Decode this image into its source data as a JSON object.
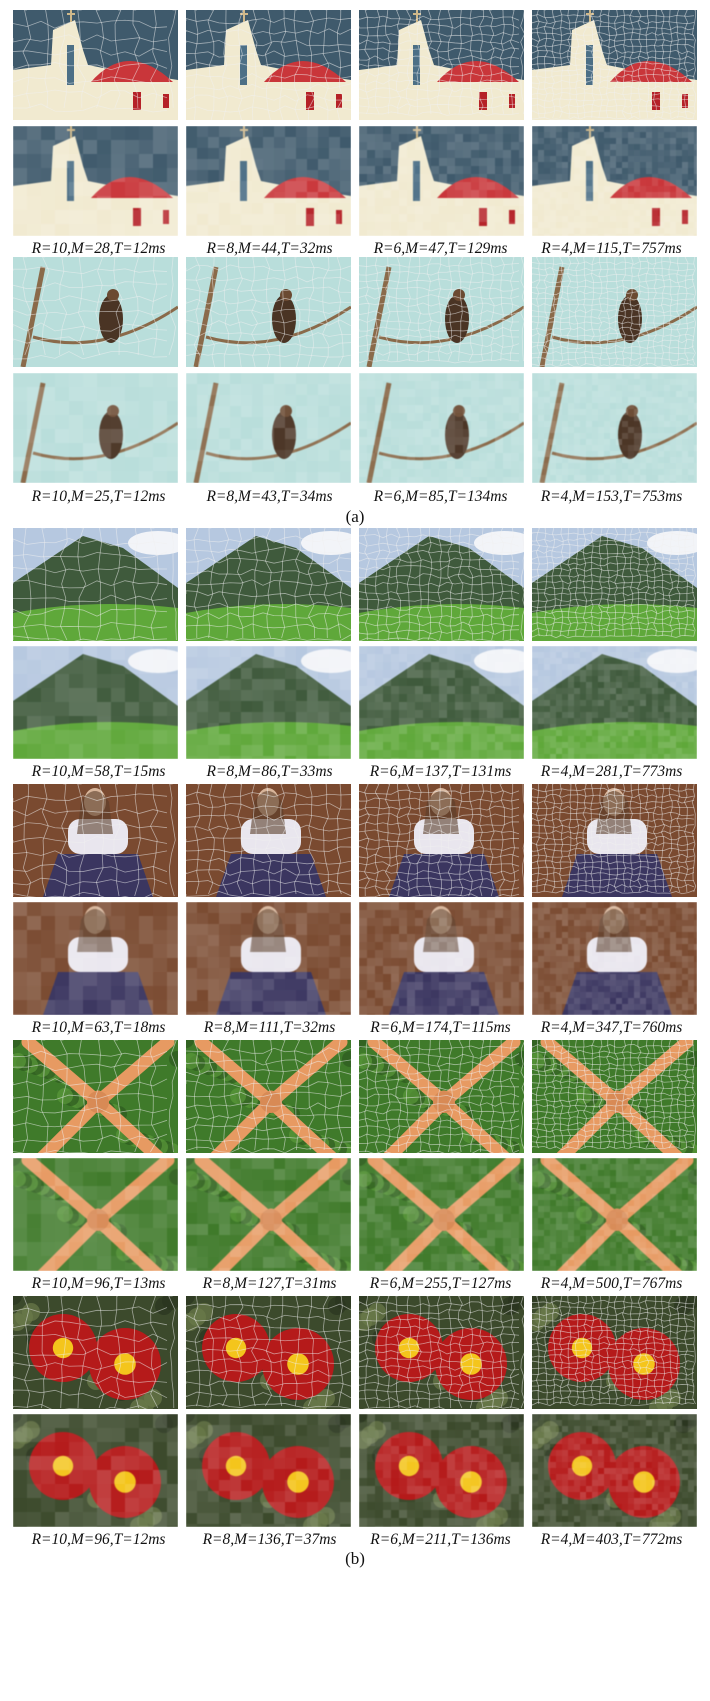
{
  "panels": [
    {
      "label": "(a)",
      "images": [
        {
          "scene": "church",
          "captions": [
            "R=10,M=28,T=12ms",
            "R=8,M=44,T=32ms",
            "R=6,M=47,T=129ms",
            "R=4,M=115,T=757ms"
          ]
        },
        {
          "scene": "bird",
          "captions": [
            "R=10,M=25,T=12ms",
            "R=8,M=43,T=34ms",
            "R=6,M=85,T=134ms",
            "R=4,M=153,T=753ms"
          ]
        }
      ]
    },
    {
      "label": "(b)",
      "images": [
        {
          "scene": "mountain",
          "captions": [
            "R=10,M=58,T=15ms",
            "R=8,M=86,T=33ms",
            "R=6,M=137,T=131ms",
            "R=4,M=281,T=773ms"
          ]
        },
        {
          "scene": "woman",
          "captions": [
            "R=10,M=63,T=18ms",
            "R=8,M=111,T=32ms",
            "R=6,M=174,T=115ms",
            "R=4,M=347,T=760ms"
          ]
        },
        {
          "scene": "starfish",
          "captions": [
            "R=10,M=96,T=13ms",
            "R=8,M=127,T=31ms",
            "R=6,M=255,T=127ms",
            "R=4,M=500,T=767ms"
          ]
        },
        {
          "scene": "flowers",
          "captions": [
            "R=10,M=96,T=12ms",
            "R=8,M=136,T=37ms",
            "R=6,M=211,T=136ms",
            "R=4,M=403,T=772ms"
          ]
        }
      ]
    }
  ],
  "colors": {
    "church_sky": "#3f5a6c",
    "church_wall": "#f1ead0",
    "church_dome": "#c9363a",
    "bird_sky": "#b9dedb",
    "bird_body": "#4a3424",
    "mountain_sky": "#b6c8e0",
    "mountain_hill": "#3f5a3c",
    "mountain_grass": "#5fa83a",
    "woman_bg": "#7a4a30",
    "woman_shirt": "#e9e6ee",
    "woman_skirt": "#3b3660",
    "starfish_bg": "#3f7a2a",
    "starfish_body": "#e79a62",
    "flower_bg": "#3c4a2c",
    "flower_petal": "#b51a1a",
    "flower_center": "#f4c51c"
  }
}
